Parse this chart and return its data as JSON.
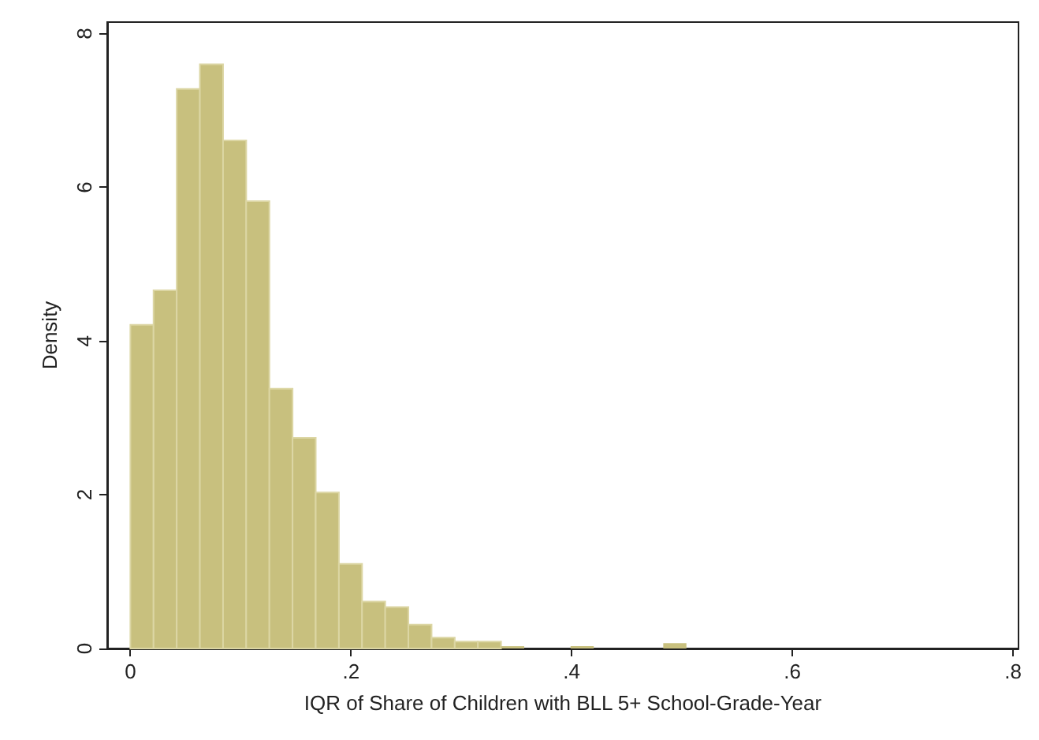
{
  "chart_data": {
    "type": "histogram",
    "xlabel": "IQR of Share of Children with BLL 5+ School-Grade-Year",
    "ylabel": "Density",
    "bins": [
      0,
      0.021,
      0.042,
      0.063,
      0.084,
      0.105,
      0.126,
      0.147,
      0.168,
      0.189,
      0.21,
      0.231,
      0.252,
      0.273,
      0.294,
      0.315,
      0.336,
      0.357,
      0.378,
      0.399,
      0.42,
      0.441,
      0.462,
      0.483,
      0.504
    ],
    "values": [
      4.21,
      4.66,
      7.28,
      7.6,
      6.61,
      5.82,
      3.38,
      2.74,
      2.03,
      1.1,
      0.61,
      0.54,
      0.31,
      0.14,
      0.09,
      0.09,
      0.03,
      0,
      0,
      0.03,
      0,
      0,
      0,
      0.07
    ],
    "color": "#c8c07e",
    "xlim": [
      -0.021,
      0.805
    ],
    "ylim": [
      0,
      8.15
    ],
    "xticks": [
      0,
      {
        "value": 0.2,
        "label": ".2"
      },
      {
        "value": 0.4,
        "label": ".4"
      },
      {
        "value": 0.6,
        "label": ".6"
      },
      {
        "value": 0.8,
        "label": ".8"
      }
    ],
    "yticks": [
      0,
      2,
      4,
      6,
      8
    ],
    "grid": false
  }
}
